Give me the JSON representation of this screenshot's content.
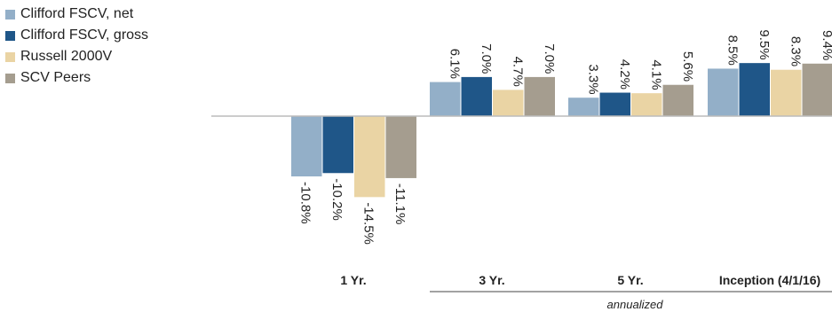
{
  "chart_data": {
    "type": "bar",
    "categories": [
      "1 Yr.",
      "3 Yr.",
      "5 Yr.",
      "Inception (4/1/16)"
    ],
    "series": [
      {
        "name": "Clifford FSCV, net",
        "color": "#93afc8",
        "values": [
          -10.8,
          6.1,
          3.3,
          8.5
        ],
        "labels": [
          "-10.8%",
          "6.1%",
          "3.3%",
          "8.5%"
        ]
      },
      {
        "name": "Clifford FSCV, gross",
        "color": "#1f5688",
        "values": [
          -10.2,
          7.0,
          4.2,
          9.5
        ],
        "labels": [
          "-10.2%",
          "7.0%",
          "4.2%",
          "9.5%"
        ]
      },
      {
        "name": "Russell 2000V",
        "color": "#ead4a4",
        "values": [
          -14.5,
          4.7,
          4.1,
          8.3
        ],
        "labels": [
          "-14.5%",
          "4.7%",
          "4.1%",
          "8.3%"
        ]
      },
      {
        "name": "SCV Peers",
        "color": "#a59d8f",
        "values": [
          -11.1,
          7.0,
          5.6,
          9.4
        ],
        "labels": [
          "-11.1%",
          "7.0%",
          "5.6%",
          "9.4%"
        ]
      }
    ],
    "annotation": "annualized",
    "legend_position": "top-left",
    "grid": false,
    "ylim": [
      -14.5,
      9.5
    ]
  }
}
